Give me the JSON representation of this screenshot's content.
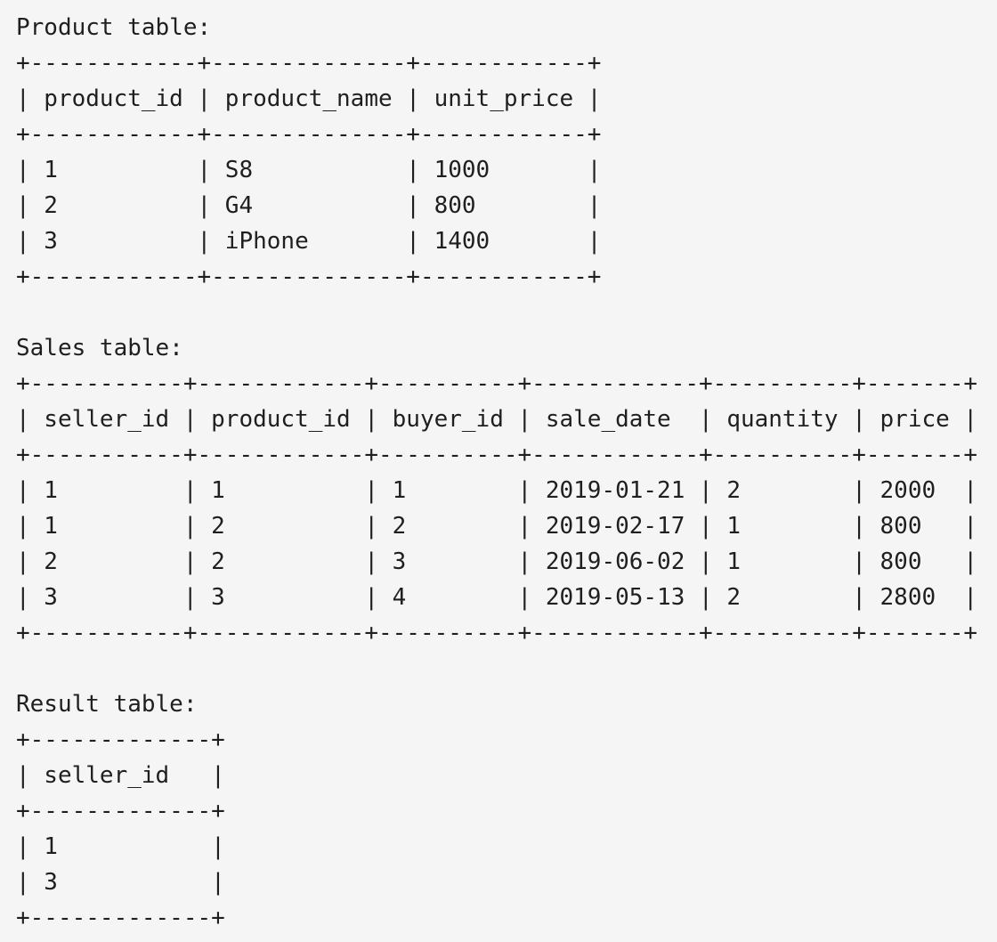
{
  "blocks": [
    {
      "title": "Product table:",
      "lines": [
        "+------------+--------------+------------+",
        "| product_id | product_name | unit_price |",
        "+------------+--------------+------------+",
        "| 1          | S8           | 1000       |",
        "| 2          | G4           | 800        |",
        "| 3          | iPhone       | 1400       |",
        "+------------+--------------+------------+"
      ]
    },
    {
      "title": "Sales table:",
      "lines": [
        "+-----------+------------+----------+------------+----------+-------+",
        "| seller_id | product_id | buyer_id | sale_date  | quantity | price |",
        "+-----------+------------+----------+------------+----------+-------+",
        "| 1         | 1          | 1        | 2019-01-21 | 2        | 2000  |",
        "| 1         | 2          | 2        | 2019-02-17 | 1        | 800   |",
        "| 2         | 2          | 3        | 2019-06-02 | 1        | 800   |",
        "| 3         | 3          | 4        | 2019-05-13 | 2        | 2800  |",
        "+-----------+------------+----------+------------+----------+-------+"
      ]
    },
    {
      "title": "Result table:",
      "lines": [
        "+-------------+",
        "| seller_id   |",
        "+-------------+",
        "| 1           |",
        "| 3           |",
        "+-------------+"
      ]
    }
  ]
}
